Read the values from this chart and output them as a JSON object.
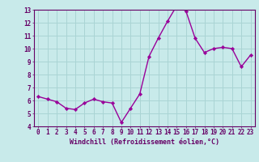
{
  "x_values": [
    0,
    1,
    2,
    3,
    4,
    5,
    6,
    7,
    8,
    9,
    10,
    11,
    12,
    13,
    14,
    15,
    16,
    17,
    18,
    19,
    20,
    21,
    22,
    23
  ],
  "y_values": [
    6.3,
    6.1,
    5.9,
    5.4,
    5.3,
    5.8,
    6.1,
    5.9,
    5.8,
    4.3,
    5.4,
    6.5,
    9.4,
    10.8,
    12.1,
    13.3,
    12.9,
    10.8,
    9.7,
    10.0,
    10.1,
    10.0,
    8.6,
    9.5
  ],
  "line_color": "#990099",
  "marker_color": "#990099",
  "bg_color": "#c8eaea",
  "grid_color": "#aad4d4",
  "axis_color": "#660066",
  "xlabel": "Windchill (Refroidissement éolien,°C)",
  "ylim": [
    4,
    13
  ],
  "xlim_min": -0.5,
  "xlim_max": 23.5,
  "yticks": [
    4,
    5,
    6,
    7,
    8,
    9,
    10,
    11,
    12,
    13
  ],
  "xticks": [
    0,
    1,
    2,
    3,
    4,
    5,
    6,
    7,
    8,
    9,
    10,
    11,
    12,
    13,
    14,
    15,
    16,
    17,
    18,
    19,
    20,
    21,
    22,
    23
  ],
  "font_name": "monospace",
  "tick_fontsize": 5.5,
  "xlabel_fontsize": 6.0,
  "linewidth": 1.0,
  "markersize": 2.2
}
